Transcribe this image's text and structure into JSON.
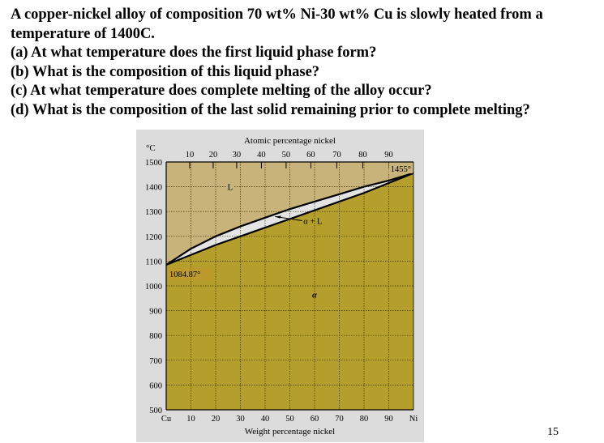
{
  "question": {
    "lines": [
      "A copper-nickel alloy of composition 70 wt% Ni-30 wt% Cu is slowly heated from a",
      "temperature of 1400C.",
      "(a) At what temperature does the first liquid phase form?",
      "(b) What is the composition of this liquid phase?",
      "(c) At what temperature does complete melting of the alloy occur?",
      "(d) What is the composition of the last solid remaining prior to complete melting?"
    ]
  },
  "page_number": "15",
  "chart_data": {
    "type": "phase-diagram",
    "xlabel": "Weight percentage nickel",
    "x2label": "Atomic percentage nickel",
    "ylabel": "°C",
    "xlim": [
      0,
      100
    ],
    "ylim": [
      500,
      1500
    ],
    "grid": true,
    "x_ticks": [
      "Cu",
      "10",
      "20",
      "30",
      "40",
      "50",
      "60",
      "70",
      "80",
      "90",
      "Ni"
    ],
    "x2_ticks": [
      "10",
      "20",
      "30",
      "40",
      "50",
      "60",
      "70",
      "80",
      "90"
    ],
    "x2_tick_positions_wt": [
      9.5,
      19,
      28.5,
      38.5,
      48.5,
      58.5,
      69,
      79.5,
      90
    ],
    "y_ticks": [
      1500,
      1400,
      1300,
      1200,
      1100,
      1000,
      900,
      800,
      700,
      600,
      500
    ],
    "liquidus": {
      "x": [
        0,
        10,
        20,
        30,
        40,
        50,
        60,
        70,
        80,
        90,
        100
      ],
      "y": [
        1085,
        1150,
        1200,
        1240,
        1275,
        1310,
        1340,
        1370,
        1400,
        1425,
        1455
      ]
    },
    "solidus": {
      "x": [
        0,
        10,
        20,
        30,
        40,
        50,
        60,
        70,
        80,
        90,
        100
      ],
      "y": [
        1085,
        1125,
        1165,
        1200,
        1235,
        1270,
        1305,
        1340,
        1375,
        1415,
        1455
      ]
    },
    "annotations": {
      "liquid": "L",
      "two_phase": "α + L",
      "solid": "α",
      "cu_melt": "1084.87°",
      "ni_melt": "1455°"
    },
    "colors": {
      "liquid": "#c8b37a",
      "solid": "#b59f2c",
      "two_phase": "#e4e4e4",
      "background": "#dcdcdc"
    }
  }
}
